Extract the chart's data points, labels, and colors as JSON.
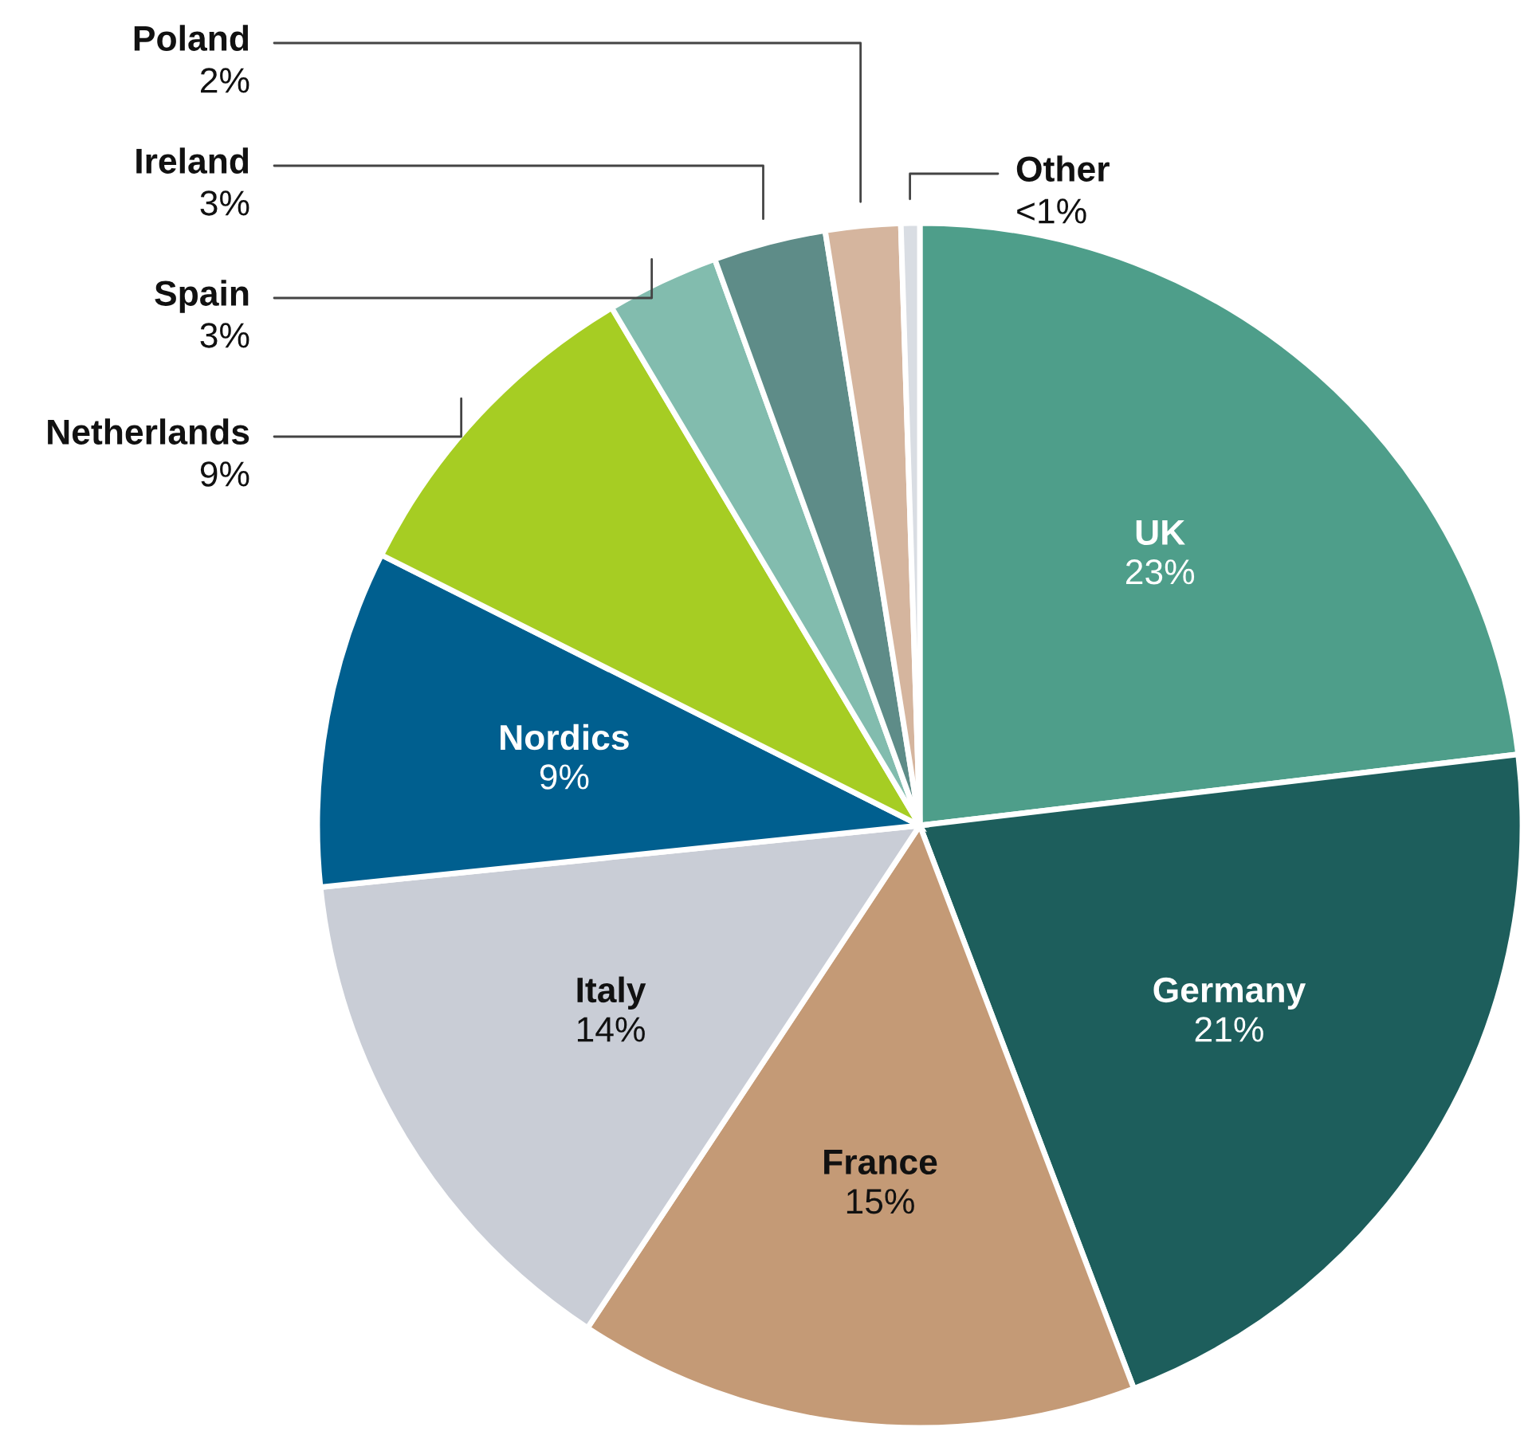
{
  "chart_data": {
    "type": "pie",
    "categories": [
      "UK",
      "Germany",
      "France",
      "Italy",
      "Nordics",
      "Netherlands",
      "Spain",
      "Ireland",
      "Poland",
      "Other"
    ],
    "values": [
      23,
      21,
      15,
      14,
      9,
      9,
      3,
      3,
      2,
      0.5
    ],
    "value_labels": [
      "23%",
      "21%",
      "15%",
      "14%",
      "9%",
      "9%",
      "3%",
      "3%",
      "2%",
      "<1%"
    ],
    "colors": [
      "#4e9e8a",
      "#1d5e5c",
      "#c49a76",
      "#c9cdd6",
      "#005f8f",
      "#a6cd23",
      "#82bcae",
      "#5e8c88",
      "#d5b59e",
      "#d9dde3"
    ]
  }
}
